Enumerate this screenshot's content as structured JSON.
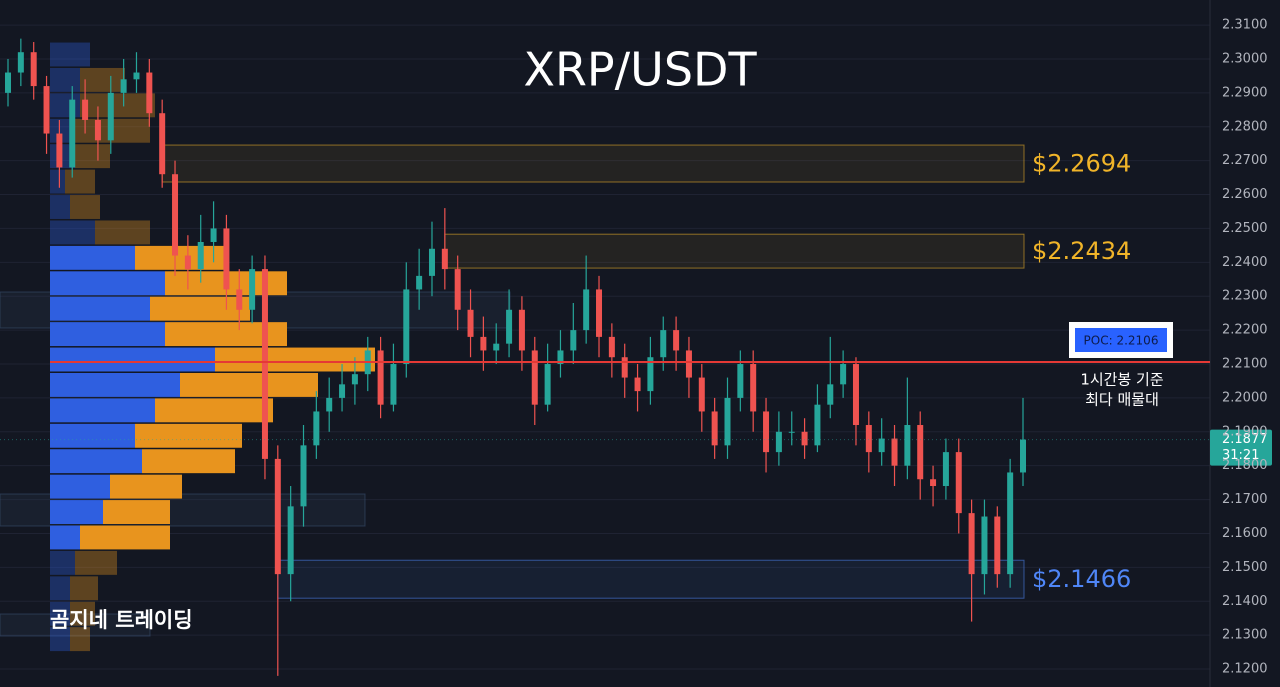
{
  "chart_data": {
    "type": "candlestick",
    "title": "XRP/USDT",
    "watermark": "곰지네 트레이딩",
    "ylim": [
      2.1147,
      2.3174
    ],
    "yticks": [
      {
        "value": 2.31,
        "label": "2.3100"
      },
      {
        "value": 2.3,
        "label": "2.3000"
      },
      {
        "value": 2.29,
        "label": "2.2900"
      },
      {
        "value": 2.28,
        "label": "2.2800"
      },
      {
        "value": 2.27,
        "label": "2.2700"
      },
      {
        "value": 2.26,
        "label": "2.2600"
      },
      {
        "value": 2.25,
        "label": "2.2500"
      },
      {
        "value": 2.24,
        "label": "2.2400"
      },
      {
        "value": 2.23,
        "label": "2.2300"
      },
      {
        "value": 2.22,
        "label": "2.2200"
      },
      {
        "value": 2.21,
        "label": "2.2100"
      },
      {
        "value": 2.2,
        "label": "2.2000"
      },
      {
        "value": 2.19,
        "label": "2.1900"
      },
      {
        "value": 2.18,
        "label": "2.1800"
      },
      {
        "value": 2.17,
        "label": "2.1700"
      },
      {
        "value": 2.16,
        "label": "2.1600"
      },
      {
        "value": 2.15,
        "label": "2.1500"
      },
      {
        "value": 2.14,
        "label": "2.1400"
      },
      {
        "value": 2.13,
        "label": "2.1300"
      },
      {
        "value": 2.12,
        "label": "2.1200"
      }
    ],
    "grid": true,
    "up_color": "#26a69a",
    "down_color": "#ef5350",
    "open": [
      2.29,
      2.296,
      2.302,
      2.292,
      2.278,
      2.268,
      2.288,
      2.282,
      2.276,
      2.29,
      2.294,
      2.296,
      2.284,
      2.266,
      2.242,
      2.238,
      2.246,
      2.25,
      2.232,
      2.226,
      2.238,
      2.182,
      2.148,
      2.168,
      2.186,
      2.196,
      2.2,
      2.204,
      2.207,
      2.214,
      2.198,
      2.21,
      2.232,
      2.236,
      2.244,
      2.238,
      2.226,
      2.218,
      2.214,
      2.216,
      2.226,
      2.214,
      2.198,
      2.21,
      2.214,
      2.22,
      2.232,
      2.218,
      2.212,
      2.206,
      2.202,
      2.212,
      2.22,
      2.214,
      2.206,
      2.196,
      2.186,
      2.2,
      2.21,
      2.196,
      2.184,
      2.19,
      2.19,
      2.186,
      2.198,
      2.204,
      2.21,
      2.192,
      2.184,
      2.188,
      2.18,
      2.192,
      2.176,
      2.174,
      2.184,
      2.166,
      2.148,
      2.165,
      2.148,
      2.178
    ],
    "high": [
      2.3,
      2.306,
      2.305,
      2.295,
      2.282,
      2.292,
      2.294,
      2.286,
      2.295,
      2.3,
      2.302,
      2.3,
      2.288,
      2.27,
      2.248,
      2.254,
      2.258,
      2.254,
      2.238,
      2.242,
      2.242,
      2.186,
      2.174,
      2.192,
      2.202,
      2.206,
      2.21,
      2.212,
      2.218,
      2.218,
      2.216,
      2.24,
      2.244,
      2.252,
      2.256,
      2.242,
      2.232,
      2.224,
      2.222,
      2.232,
      2.23,
      2.218,
      2.216,
      2.22,
      2.228,
      2.242,
      2.236,
      2.222,
      2.216,
      2.21,
      2.218,
      2.224,
      2.224,
      2.218,
      2.21,
      2.2,
      2.206,
      2.214,
      2.214,
      2.2,
      2.196,
      2.196,
      2.194,
      2.204,
      2.218,
      2.214,
      2.212,
      2.196,
      2.194,
      2.192,
      2.206,
      2.196,
      2.18,
      2.188,
      2.188,
      2.17,
      2.17,
      2.168,
      2.182,
      2.2
    ],
    "low": [
      2.286,
      2.292,
      2.288,
      2.272,
      2.262,
      2.265,
      2.278,
      2.27,
      2.272,
      2.286,
      2.29,
      2.28,
      2.262,
      2.236,
      2.232,
      2.234,
      2.24,
      2.226,
      2.22,
      2.222,
      2.176,
      2.118,
      2.14,
      2.162,
      2.182,
      2.19,
      2.196,
      2.198,
      2.202,
      2.194,
      2.196,
      2.206,
      2.226,
      2.23,
      2.232,
      2.22,
      2.212,
      2.208,
      2.21,
      2.212,
      2.208,
      2.192,
      2.196,
      2.206,
      2.21,
      2.216,
      2.212,
      2.206,
      2.2,
      2.196,
      2.198,
      2.208,
      2.208,
      2.2,
      2.19,
      2.182,
      2.182,
      2.196,
      2.19,
      2.178,
      2.18,
      2.186,
      2.182,
      2.184,
      2.194,
      2.2,
      2.186,
      2.178,
      2.18,
      2.174,
      2.176,
      2.17,
      2.168,
      2.17,
      2.16,
      2.134,
      2.142,
      2.144,
      2.144,
      2.174
    ],
    "close": [
      2.296,
      2.302,
      2.292,
      2.278,
      2.268,
      2.288,
      2.282,
      2.276,
      2.29,
      2.294,
      2.296,
      2.284,
      2.266,
      2.242,
      2.238,
      2.246,
      2.25,
      2.232,
      2.226,
      2.238,
      2.182,
      2.148,
      2.168,
      2.186,
      2.196,
      2.2,
      2.204,
      2.207,
      2.214,
      2.198,
      2.21,
      2.232,
      2.236,
      2.244,
      2.238,
      2.226,
      2.218,
      2.214,
      2.216,
      2.226,
      2.214,
      2.198,
      2.21,
      2.214,
      2.22,
      2.232,
      2.218,
      2.212,
      2.206,
      2.202,
      2.212,
      2.22,
      2.214,
      2.206,
      2.196,
      2.186,
      2.2,
      2.21,
      2.196,
      2.184,
      2.19,
      2.19,
      2.186,
      2.198,
      2.204,
      2.21,
      2.192,
      2.184,
      2.188,
      2.18,
      2.192,
      2.176,
      2.174,
      2.184,
      2.166,
      2.148,
      2.165,
      2.148,
      2.178,
      2.1877
    ],
    "zones": [
      {
        "label": "$2.2694",
        "low": 2.2637,
        "high": 2.2746,
        "start": 12,
        "color": "#f0b429"
      },
      {
        "label": "$2.2434",
        "low": 2.2383,
        "high": 2.2483,
        "start": 34,
        "color": "#f0b429"
      },
      {
        "label": "$2.1466",
        "low": 2.1409,
        "high": 2.1521,
        "start": 21,
        "color": "#4f86f7"
      }
    ],
    "poc": {
      "value": 2.2106,
      "label": "POC: 2.2106",
      "color": "#e53935",
      "note": [
        "1시간봉 기준",
        "최다 매물대"
      ]
    },
    "last_price": {
      "value": 2.1877,
      "countdown": "31:21"
    },
    "volume_profile": {
      "buy_color": "#2f5fe0",
      "sell_color": "#e8941e",
      "value_area": [
        2.1586,
        2.2411
      ],
      "price": [
        2.3011,
        2.2936,
        2.2861,
        2.2786,
        2.2711,
        2.2636,
        2.2561,
        2.2486,
        2.2411,
        2.2336,
        2.2261,
        2.2186,
        2.2111,
        2.2036,
        2.1961,
        2.1886,
        2.1811,
        2.1736,
        2.1661,
        2.1586,
        2.1511,
        2.1436,
        2.1361,
        2.1286
      ],
      "buy": [
        40,
        30,
        30,
        25,
        25,
        15,
        20,
        45,
        85,
        115,
        100,
        115,
        165,
        130,
        105,
        85,
        92,
        60,
        53,
        30,
        25,
        20,
        20,
        20
      ],
      "sell": [
        0,
        45,
        75,
        75,
        35,
        30,
        30,
        55,
        93,
        122,
        100,
        122,
        160,
        138,
        118,
        107,
        93,
        72,
        67,
        90,
        42,
        28,
        25,
        20
      ]
    }
  }
}
